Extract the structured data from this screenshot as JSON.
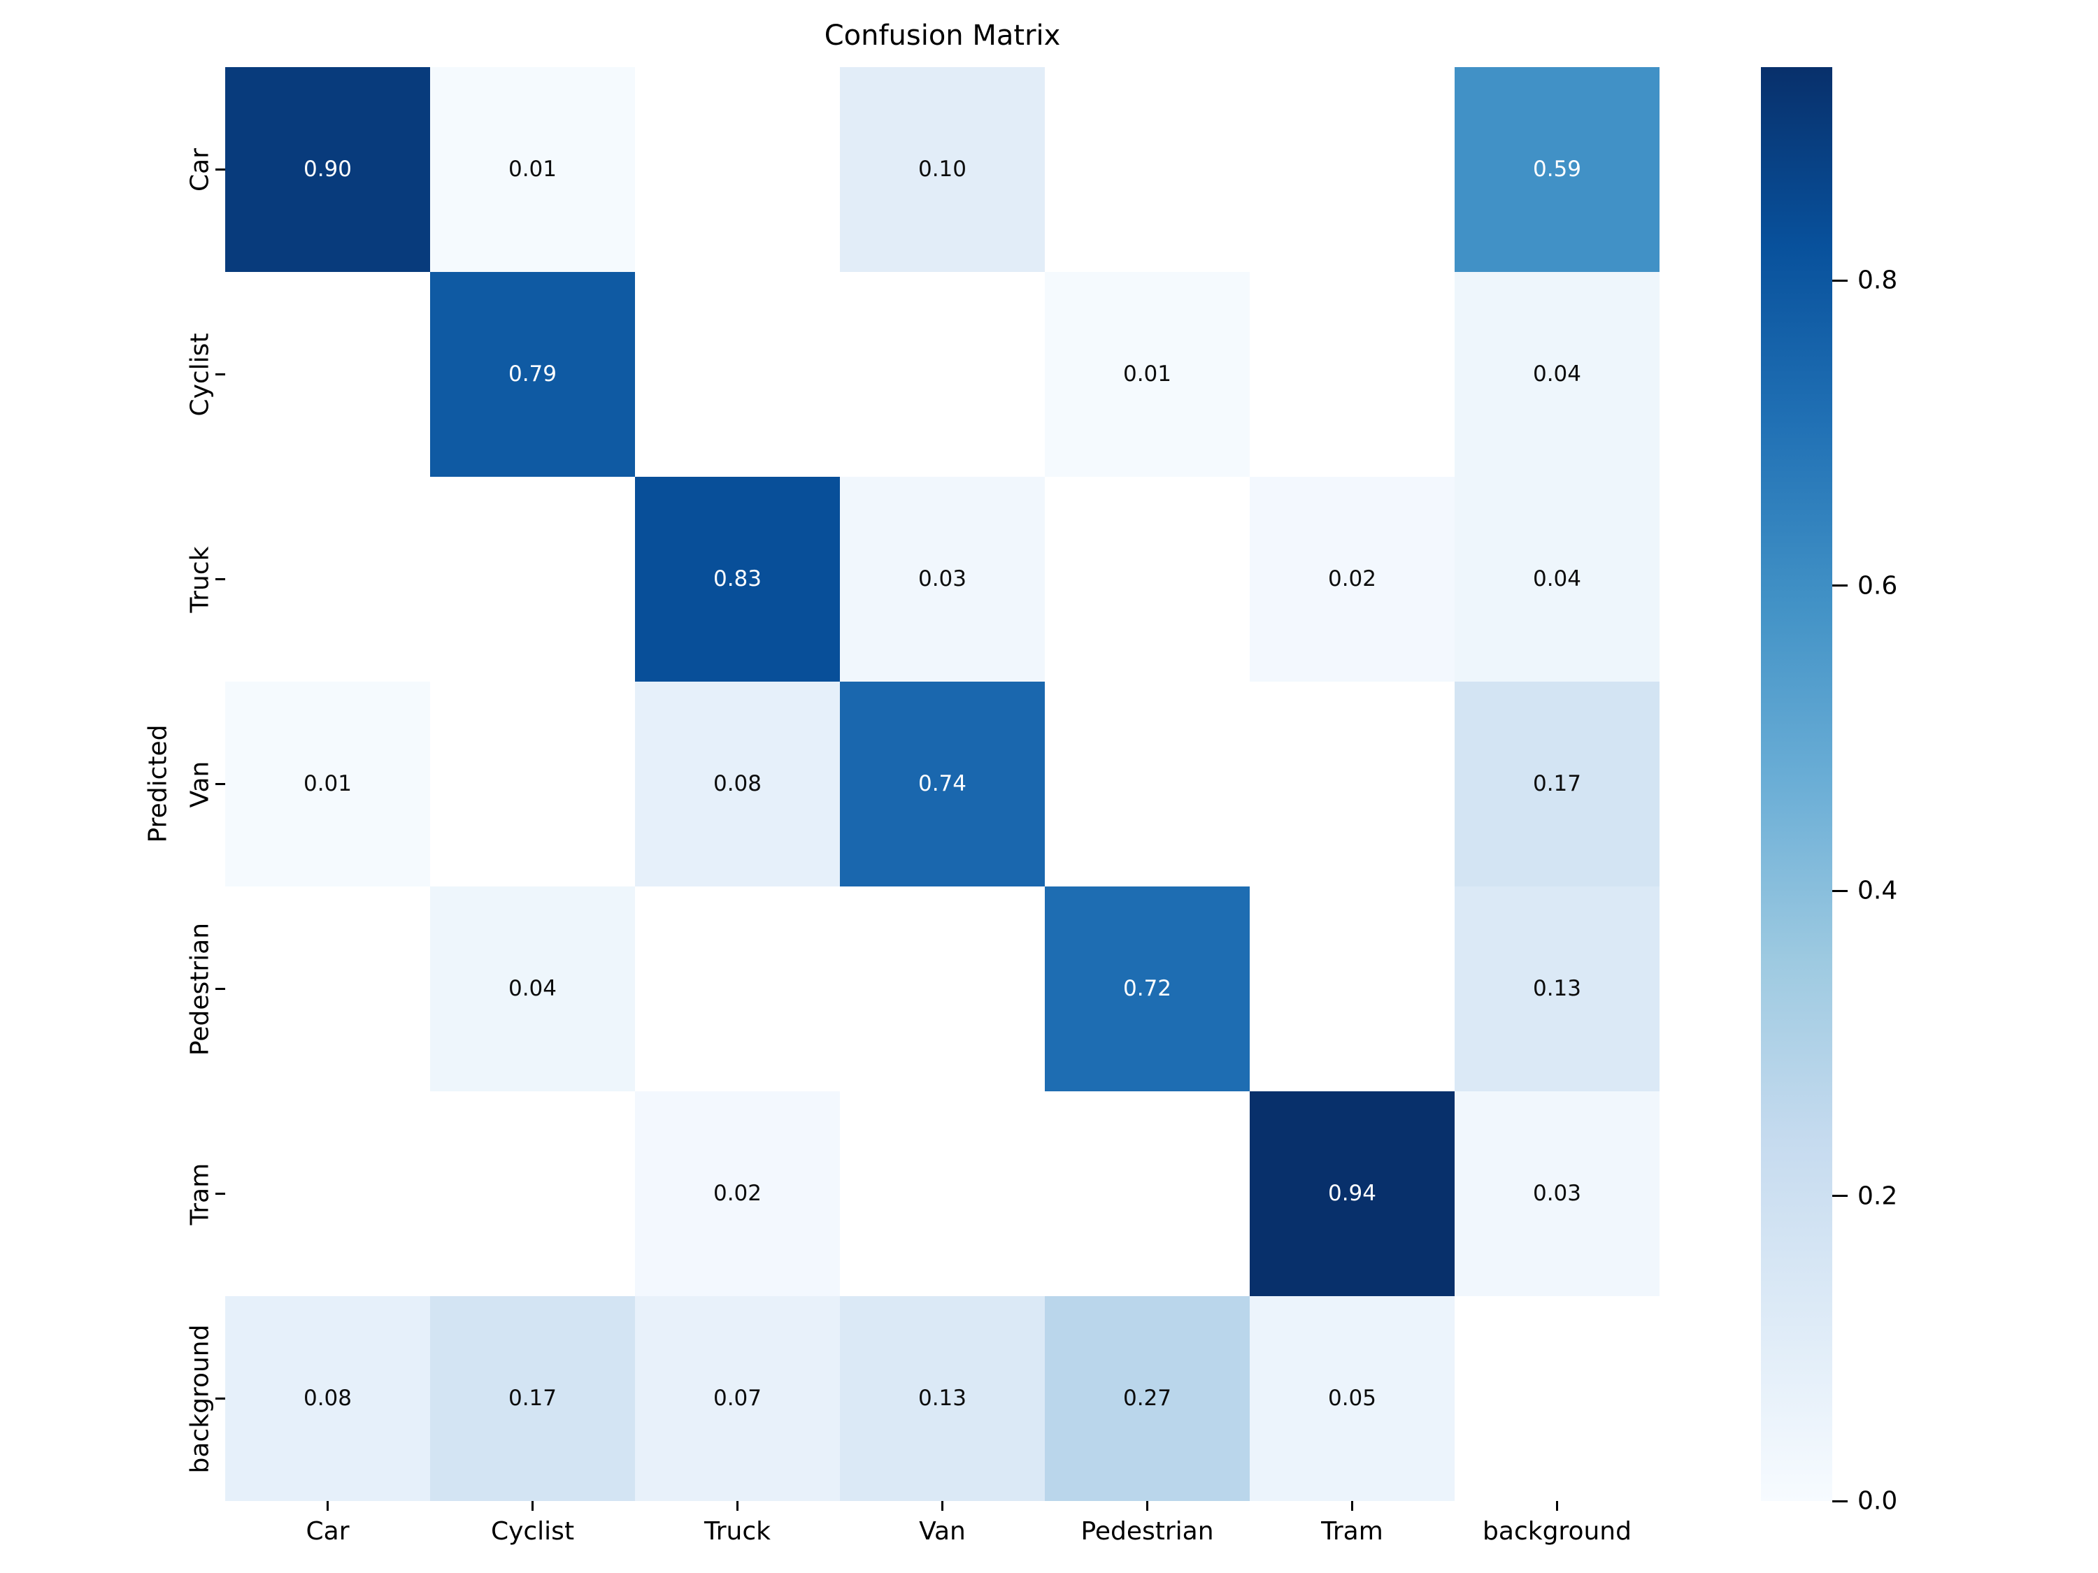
{
  "title": "Confusion Matrix",
  "chart_data": {
    "type": "heatmap",
    "title": "Confusion Matrix",
    "xlabel": "",
    "ylabel": "Predicted",
    "x_categories": [
      "Car",
      "Cyclist",
      "Truck",
      "Van",
      "Pedestrian",
      "Tram",
      "background"
    ],
    "y_categories": [
      "Car",
      "Cyclist",
      "Truck",
      "Van",
      "Pedestrian",
      "Tram",
      "background"
    ],
    "matrix": [
      [
        0.9,
        0.01,
        null,
        0.1,
        null,
        null,
        0.59
      ],
      [
        null,
        0.79,
        null,
        null,
        0.01,
        null,
        0.04
      ],
      [
        null,
        null,
        0.83,
        0.03,
        null,
        0.02,
        0.04
      ],
      [
        0.01,
        null,
        0.08,
        0.74,
        null,
        null,
        0.17
      ],
      [
        null,
        0.04,
        null,
        null,
        0.72,
        null,
        0.13
      ],
      [
        null,
        null,
        0.02,
        null,
        null,
        0.94,
        0.03
      ],
      [
        0.08,
        0.17,
        0.07,
        0.13,
        0.27,
        0.05,
        null
      ]
    ],
    "annotation_decimals": 2,
    "empty_cell_color": "#ffffff",
    "grid": false,
    "colorbar": {
      "position": "right",
      "vmin": 0.0,
      "vmax": 0.94,
      "tick_values": [
        0.0,
        0.2,
        0.4,
        0.6,
        0.8
      ],
      "tick_labels": [
        "0.0",
        "0.2",
        "0.4",
        "0.6",
        "0.8"
      ]
    },
    "colormap": {
      "name": "Blues",
      "stops": [
        "#f7fbff",
        "#deebf7",
        "#c6dbef",
        "#9ecae1",
        "#6baed6",
        "#4292c6",
        "#2171b5",
        "#08519c",
        "#08306b"
      ]
    },
    "annotation_text_colors": {
      "dark_cell_text": "#ffffff",
      "light_cell_text": "#0c0c0c"
    }
  }
}
